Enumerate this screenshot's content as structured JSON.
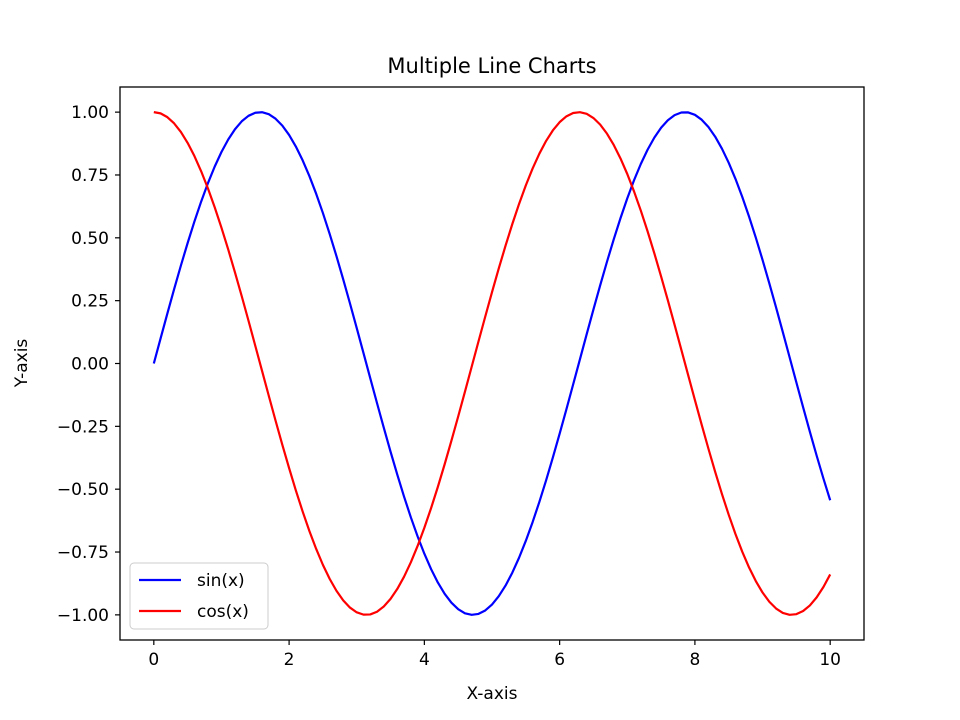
{
  "chart_data": {
    "type": "line",
    "title": "Multiple Line Charts",
    "xlabel": "X-axis",
    "ylabel": "Y-axis",
    "xlim": [
      -0.5,
      10.5
    ],
    "ylim": [
      -1.1,
      1.1
    ],
    "xticks": [
      {
        "value": 0,
        "label": "0"
      },
      {
        "value": 2,
        "label": "2"
      },
      {
        "value": 4,
        "label": "4"
      },
      {
        "value": 6,
        "label": "6"
      },
      {
        "value": 8,
        "label": "8"
      },
      {
        "value": 10,
        "label": "10"
      }
    ],
    "yticks": [
      {
        "value": 1.0,
        "label": "1.00"
      },
      {
        "value": 0.75,
        "label": "0.75"
      },
      {
        "value": 0.5,
        "label": "0.50"
      },
      {
        "value": 0.25,
        "label": "0.25"
      },
      {
        "value": 0.0,
        "label": "0.00"
      },
      {
        "value": -0.25,
        "label": "−0.25"
      },
      {
        "value": -0.5,
        "label": "−0.50"
      },
      {
        "value": -0.75,
        "label": "−0.75"
      },
      {
        "value": -1.0,
        "label": "−1.00"
      }
    ],
    "grid": false,
    "legend_position": "lower-left",
    "series": [
      {
        "name": "sin(x)",
        "color": "#0000ff",
        "x": [
          0.0,
          0.1,
          0.2,
          0.3,
          0.4,
          0.5,
          0.6,
          0.7,
          0.8,
          0.9,
          1.0,
          1.1,
          1.2,
          1.3,
          1.4,
          1.5,
          1.6,
          1.7,
          1.8,
          1.9,
          2.0,
          2.1,
          2.2,
          2.3,
          2.4,
          2.5,
          2.6,
          2.7,
          2.8,
          2.9,
          3.0,
          3.1,
          3.2,
          3.3,
          3.4,
          3.5,
          3.6,
          3.7,
          3.8,
          3.9,
          4.0,
          4.1,
          4.2,
          4.3,
          4.4,
          4.5,
          4.6,
          4.7,
          4.8,
          4.9,
          5.0,
          5.1,
          5.2,
          5.3,
          5.4,
          5.5,
          5.6,
          5.7,
          5.8,
          5.9,
          6.0,
          6.1,
          6.2,
          6.3,
          6.4,
          6.5,
          6.6,
          6.7,
          6.8,
          6.9,
          7.0,
          7.1,
          7.2,
          7.3,
          7.4,
          7.5,
          7.6,
          7.7,
          7.8,
          7.9,
          8.0,
          8.1,
          8.2,
          8.3,
          8.4,
          8.5,
          8.6,
          8.7,
          8.8,
          8.9,
          9.0,
          9.1,
          9.2,
          9.3,
          9.4,
          9.5,
          9.6,
          9.7,
          9.8,
          9.9,
          10.0
        ],
        "y": [
          0.0,
          0.0998,
          0.1987,
          0.2955,
          0.3894,
          0.4794,
          0.5646,
          0.6442,
          0.7174,
          0.7833,
          0.8415,
          0.8912,
          0.932,
          0.9636,
          0.9854,
          0.9975,
          0.9996,
          0.9917,
          0.9738,
          0.9463,
          0.9093,
          0.8632,
          0.8085,
          0.7457,
          0.6755,
          0.5985,
          0.5155,
          0.4274,
          0.335,
          0.2392,
          0.1411,
          0.0416,
          -0.0584,
          -0.1577,
          -0.2555,
          -0.3508,
          -0.4425,
          -0.5298,
          -0.6119,
          -0.6878,
          -0.7568,
          -0.8183,
          -0.8716,
          -0.9162,
          -0.9516,
          -0.9775,
          -0.9937,
          -0.9999,
          -0.9962,
          -0.9825,
          -0.9589,
          -0.9258,
          -0.8835,
          -0.8323,
          -0.7728,
          -0.7055,
          -0.6313,
          -0.5507,
          -0.4646,
          -0.3739,
          -0.2794,
          -0.1822,
          -0.0831,
          0.0168,
          0.1165,
          0.2151,
          0.3115,
          0.4048,
          0.4941,
          0.5784,
          0.657,
          0.729,
          0.7937,
          0.8504,
          0.8987,
          0.938,
          0.9679,
          0.9882,
          0.9985,
          0.9989,
          0.9894,
          0.9699,
          0.9407,
          0.9022,
          0.8546,
          0.7985,
          0.7344,
          0.663,
          0.5849,
          0.501,
          0.4121,
          0.319,
          0.2229,
          0.1245,
          0.0248,
          -0.0752,
          -0.1743,
          -0.2718,
          -0.3665,
          -0.4575,
          -0.544
        ]
      },
      {
        "name": "cos(x)",
        "color": "#ff0000",
        "x": [
          0.0,
          0.1,
          0.2,
          0.3,
          0.4,
          0.5,
          0.6,
          0.7,
          0.8,
          0.9,
          1.0,
          1.1,
          1.2,
          1.3,
          1.4,
          1.5,
          1.6,
          1.7,
          1.8,
          1.9,
          2.0,
          2.1,
          2.2,
          2.3,
          2.4,
          2.5,
          2.6,
          2.7,
          2.8,
          2.9,
          3.0,
          3.1,
          3.2,
          3.3,
          3.4,
          3.5,
          3.6,
          3.7,
          3.8,
          3.9,
          4.0,
          4.1,
          4.2,
          4.3,
          4.4,
          4.5,
          4.6,
          4.7,
          4.8,
          4.9,
          5.0,
          5.1,
          5.2,
          5.3,
          5.4,
          5.5,
          5.6,
          5.7,
          5.8,
          5.9,
          6.0,
          6.1,
          6.2,
          6.3,
          6.4,
          6.5,
          6.6,
          6.7,
          6.8,
          6.9,
          7.0,
          7.1,
          7.2,
          7.3,
          7.4,
          7.5,
          7.6,
          7.7,
          7.8,
          7.9,
          8.0,
          8.1,
          8.2,
          8.3,
          8.4,
          8.5,
          8.6,
          8.7,
          8.8,
          8.9,
          9.0,
          9.1,
          9.2,
          9.3,
          9.4,
          9.5,
          9.6,
          9.7,
          9.8,
          9.9,
          10.0
        ],
        "y": [
          1.0,
          0.995,
          0.9801,
          0.9553,
          0.9211,
          0.8776,
          0.8253,
          0.7648,
          0.6967,
          0.6216,
          0.5403,
          0.4536,
          0.3624,
          0.2675,
          0.17,
          0.0707,
          -0.0292,
          -0.1288,
          -0.2272,
          -0.3233,
          -0.4161,
          -0.5048,
          -0.5885,
          -0.6663,
          -0.7374,
          -0.8011,
          -0.8569,
          -0.9041,
          -0.9422,
          -0.971,
          -0.99,
          -0.9991,
          -0.9983,
          -0.9875,
          -0.9668,
          -0.9365,
          -0.8968,
          -0.8481,
          -0.791,
          -0.7259,
          -0.6536,
          -0.5748,
          -0.4903,
          -0.4008,
          -0.3073,
          -0.2108,
          -0.1122,
          -0.0124,
          0.0875,
          0.1865,
          0.2837,
          0.378,
          0.4685,
          0.5544,
          0.6347,
          0.7087,
          0.7756,
          0.8347,
          0.8855,
          0.9275,
          0.9602,
          0.9833,
          0.9965,
          0.9999,
          0.9932,
          0.9766,
          0.9502,
          0.9144,
          0.8694,
          0.8157,
          0.7539,
          0.6845,
          0.6084,
          0.5261,
          0.4385,
          0.3466,
          0.2513,
          0.1534,
          0.054,
          -0.046,
          -0.1455,
          -0.2435,
          -0.3392,
          -0.4314,
          -0.5193,
          -0.602,
          -0.6787,
          -0.7486,
          -0.8111,
          -0.8654,
          -0.9111,
          -0.9477,
          -0.9748,
          -0.9922,
          -0.9997,
          -0.9972,
          -0.9847,
          -0.9624,
          -0.9304,
          -0.8892,
          -0.8391
        ]
      }
    ]
  }
}
